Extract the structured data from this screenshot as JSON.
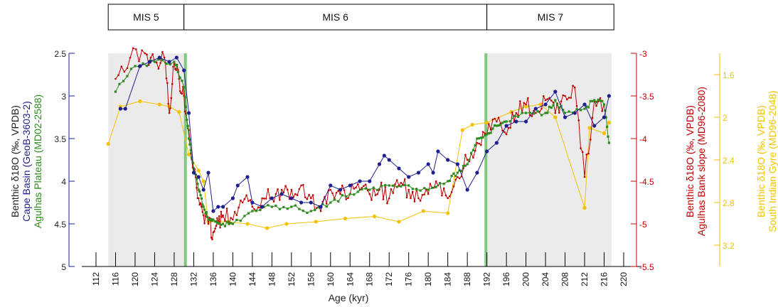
{
  "stages": [
    {
      "label": "MIS 5",
      "from": 114.5,
      "to": 130
    },
    {
      "label": "MIS 6",
      "from": 130,
      "to": 192
    },
    {
      "label": "MIS 7",
      "from": 192,
      "to": 218
    }
  ],
  "chart_data": {
    "type": "line",
    "xlabel": "Age (kyr)",
    "xlim": [
      112,
      220
    ],
    "x_ticks": [
      112,
      116,
      120,
      124,
      128,
      132,
      136,
      140,
      144,
      148,
      152,
      156,
      160,
      164,
      168,
      172,
      176,
      180,
      184,
      188,
      192,
      196,
      200,
      204,
      208,
      212,
      216,
      220
    ],
    "y_axes": {
      "left": {
        "label_line1": "Benthic δ18O (‰, VPDB)",
        "label_line2": "Cape Basin (GeoB-3603-2)",
        "label_line3": "Agulhas Plateau (MD02-2588)",
        "ylim": [
          2.5,
          5
        ],
        "inverted": true,
        "ticks": [
          "2.5",
          "3",
          "3.5",
          "4",
          "4.5",
          "5"
        ],
        "color": "#1f1f8f"
      },
      "right1": {
        "label_line1": "Benthic δ18O (‰, VPDB)",
        "label_line2": "Agulhas Bank slope (MD96-2080)",
        "ylim": [
          3,
          5.5
        ],
        "inverted": true,
        "ticks": [
          "-3",
          "-3.5",
          "-4",
          "-4.5",
          "-5",
          "-5.5"
        ],
        "color": "#c00000"
      },
      "right2": {
        "label_line1": "Benthic δ18O (‰, VPDB)",
        "label_line2": "South Indian Gyre (MD96-2048)",
        "ylim": [
          1.4,
          3.4
        ],
        "inverted": true,
        "ticks": [
          "1.6",
          "2",
          "2.4",
          "2.8",
          "3.2"
        ],
        "color": "#f2c200"
      }
    },
    "shaded_intervals": [
      [
        114.5,
        130.3
      ],
      [
        191.8,
        217.5
      ]
    ],
    "marker_lines": [
      130.3,
      191.8
    ],
    "series": [
      {
        "axis": "left",
        "color": "#1f1f8f",
        "marker": "circle",
        "x": [
          117,
          118,
          121,
          123,
          125,
          127,
          128.5,
          130,
          131,
          132,
          133,
          134,
          135,
          136,
          137,
          138,
          140,
          141,
          143,
          144,
          146,
          148,
          150,
          152,
          154,
          156,
          158,
          160,
          162,
          164,
          166,
          168,
          170,
          171,
          172,
          174,
          176,
          178,
          180,
          181,
          182,
          184,
          186,
          188,
          190,
          192,
          194,
          196,
          198,
          200,
          202,
          204,
          206,
          208,
          210,
          212,
          214,
          216,
          217
        ],
        "y": [
          3.15,
          3.15,
          2.65,
          2.6,
          2.55,
          2.6,
          2.55,
          2.7,
          3.2,
          3.9,
          3.95,
          4.1,
          3.9,
          4.35,
          4.3,
          4.3,
          4.2,
          4.05,
          3.95,
          4.25,
          4.3,
          4.2,
          4.15,
          4.2,
          4.25,
          4.25,
          4.3,
          4.05,
          4.1,
          4.05,
          4.0,
          4.0,
          3.8,
          3.7,
          3.75,
          3.85,
          3.95,
          3.9,
          3.8,
          3.9,
          3.65,
          3.75,
          3.8,
          4.1,
          3.9,
          3.65,
          3.55,
          3.35,
          3.3,
          3.3,
          3.15,
          3.1,
          2.95,
          3.25,
          3.2,
          3.1,
          3.35,
          3.25,
          3.0
        ]
      },
      {
        "axis": "left",
        "color": "#2e8b1e",
        "marker": "square",
        "generated": true,
        "x": [
          116,
          120,
          124,
          128,
          130,
          131,
          132,
          133,
          134,
          135,
          136,
          138,
          140,
          144,
          148,
          152,
          156,
          160,
          164,
          168,
          172,
          176,
          180,
          184,
          186,
          188,
          190,
          192,
          194,
          196,
          200,
          204,
          206,
          208,
          212,
          214,
          216,
          217
        ],
        "y": [
          2.95,
          2.65,
          2.6,
          2.6,
          2.9,
          3.5,
          3.85,
          4.1,
          4.3,
          4.45,
          4.45,
          4.5,
          4.5,
          4.35,
          4.3,
          4.3,
          4.35,
          4.25,
          4.15,
          4.1,
          4.05,
          4.05,
          4.1,
          4.0,
          3.9,
          3.8,
          3.5,
          3.45,
          3.35,
          3.3,
          3.2,
          3.2,
          3.05,
          3.2,
          3.15,
          3.05,
          3.1,
          3.55
        ]
      },
      {
        "axis": "right1",
        "color": "#c00000",
        "marker": "dot",
        "generated": true,
        "x": [
          116,
          119,
          122,
          124,
          126,
          127,
          128,
          129,
          130,
          131,
          132,
          133,
          134,
          135,
          136,
          137,
          138,
          140,
          142,
          144,
          146,
          148,
          150,
          152,
          154,
          156,
          158,
          160,
          162,
          164,
          166,
          168,
          170,
          172,
          174,
          176,
          178,
          180,
          182,
          184,
          186,
          188,
          190,
          192,
          194,
          196,
          198,
          200,
          202,
          204,
          206,
          208,
          210,
          212,
          214,
          216
        ],
        "y": [
          3.3,
          3.05,
          3.0,
          3.1,
          3.05,
          3.7,
          3.1,
          3.3,
          3.5,
          3.9,
          4.4,
          4.7,
          4.9,
          5.0,
          5.1,
          5.0,
          4.9,
          4.95,
          4.75,
          4.8,
          4.7,
          4.7,
          4.6,
          4.6,
          4.55,
          4.7,
          4.85,
          4.6,
          4.65,
          4.65,
          4.6,
          4.65,
          4.6,
          4.7,
          4.55,
          4.6,
          4.7,
          4.65,
          4.55,
          4.7,
          4.45,
          4.25,
          4.05,
          3.95,
          3.8,
          3.95,
          3.7,
          3.6,
          3.7,
          3.55,
          3.7,
          3.5,
          3.4,
          4.45,
          3.55,
          3.6
        ]
      },
      {
        "axis": "right2",
        "color": "#f2c200",
        "marker": "circle",
        "x": [
          114.5,
          117,
          121,
          125,
          127,
          129,
          131,
          133,
          134,
          135,
          137,
          139,
          143,
          147,
          151,
          157,
          163,
          169,
          174,
          179,
          184,
          187,
          189,
          192,
          197,
          200,
          203,
          206,
          212,
          213,
          216,
          217
        ],
        "y": [
          2.25,
          1.9,
          1.85,
          1.88,
          1.9,
          1.95,
          2.35,
          2.5,
          2.6,
          2.98,
          2.98,
          2.98,
          3.0,
          3.04,
          3.0,
          2.98,
          2.95,
          2.93,
          2.98,
          2.88,
          2.9,
          2.12,
          2.07,
          2.05,
          1.95,
          1.9,
          1.88,
          2.0,
          2.85,
          2.1,
          2.15,
          2.05
        ]
      }
    ]
  }
}
